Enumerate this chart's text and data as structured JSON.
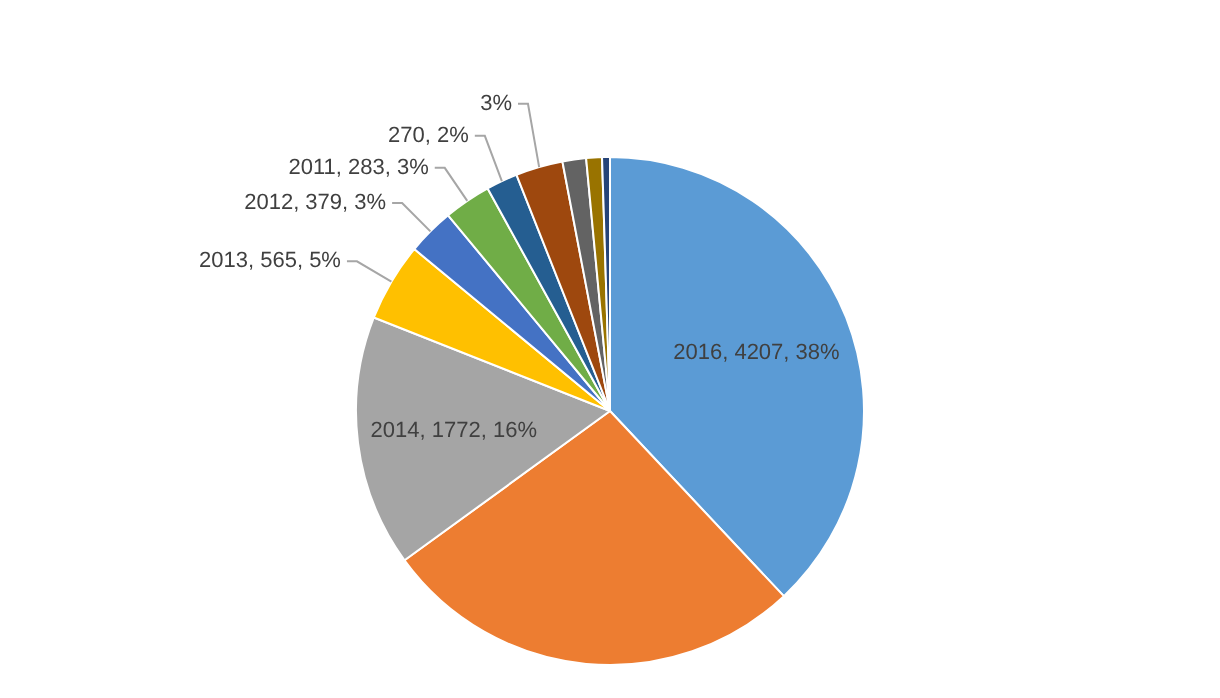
{
  "chart_data": {
    "type": "pie",
    "categories": [
      "2016",
      null,
      "2014",
      "2013",
      "2012",
      "2011",
      null,
      null,
      null,
      null,
      null
    ],
    "values": [
      38,
      27,
      16,
      5,
      3,
      3,
      2,
      3,
      1.5,
      1,
      0.5
    ],
    "colors": [
      "#5b9bd5",
      "#ed7d31",
      "#a5a5a5",
      "#ffc000",
      "#4472c4",
      "#70ad47",
      "#255e91",
      "#9e480e",
      "#636363",
      "#997300",
      "#264478"
    ],
    "value_labels": [
      "4207, 38%",
      null,
      "1772, 16%",
      "565, 5%",
      "379, 3%",
      "283, 3%",
      "270, 2%",
      "3%",
      null,
      null,
      null
    ]
  }
}
